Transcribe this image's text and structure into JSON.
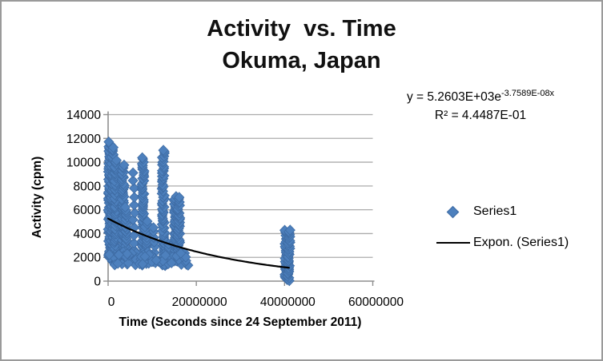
{
  "chart": {
    "title_line1": "Activity  vs. Time",
    "title_line2": "Okuma, Japan",
    "equation": {
      "prefix": "y = 5.2603E+03e",
      "exponent": "-3.7589E-08x",
      "r2": "R² = 4.4487E-01"
    },
    "x_axis": {
      "title": "Time (Seconds since 24 September 2011)",
      "ticks": [
        "0",
        "20000000",
        "40000000",
        "60000000"
      ]
    },
    "y_axis": {
      "title": "Activity (cpm)",
      "ticks": [
        "0",
        "2000",
        "4000",
        "6000",
        "8000",
        "10000",
        "12000",
        "14000"
      ]
    },
    "legend": [
      {
        "label": "Series1",
        "marker": "diamond-icon"
      },
      {
        "label": "Expon. (Series1)",
        "marker": "line-icon"
      }
    ],
    "colors": {
      "marker": "#4d80bd",
      "marker_edge": "#3e6ba3",
      "trendline": "#000000",
      "gridline": "#ababab",
      "axis": "#8f8f8f",
      "border": "#9a9a9a",
      "text": "#000000"
    }
  },
  "chart_data": {
    "type": "scatter",
    "title": "Activity vs. Time — Okuma, Japan",
    "xlabel": "Time (Seconds since 24 September 2011)",
    "ylabel": "Activity (cpm)",
    "xlim": [
      0,
      60000000
    ],
    "ylim": [
      0,
      14000
    ],
    "x_tick_values": [
      0,
      20000000,
      40000000,
      60000000
    ],
    "y_tick_values": [
      0,
      2000,
      4000,
      6000,
      8000,
      10000,
      12000,
      14000
    ],
    "grid": "horizontal",
    "legend_position": "right",
    "series": [
      {
        "name": "Series1",
        "marker": "diamond",
        "note": "Hundreds of overlapping counts-per-minute readings forming dense vertical bands; represented as column ranges (x seconds, activity cpm min/max, sampling step).",
        "clusters": [
          {
            "x": 300000,
            "ymin": 2100,
            "ymax": 11700,
            "step": 150
          },
          {
            "x": 950000,
            "ymin": 1600,
            "ymax": 11350,
            "step": 160
          },
          {
            "x": 1700000,
            "ymin": 1500,
            "ymax": 10200,
            "step": 170
          },
          {
            "x": 3400000,
            "ymin": 1500,
            "ymax": 9900,
            "step": 160
          },
          {
            "x": 4050000,
            "ymin": 1400,
            "ymax": 6300,
            "step": 200
          },
          {
            "x": 5800000,
            "ymin": 1900,
            "ymax": 9300,
            "step": 650
          },
          {
            "x": 7900000,
            "ymin": 1400,
            "ymax": 10400,
            "step": 160
          },
          {
            "x": 8600000,
            "ymin": 1500,
            "ymax": 5100,
            "step": 220
          },
          {
            "x": 10400000,
            "ymin": 1600,
            "ymax": 4900,
            "step": 420
          },
          {
            "x": 12500000,
            "ymin": 1700,
            "ymax": 11000,
            "step": 150
          },
          {
            "x": 13100000,
            "ymin": 1500,
            "ymax": 3400,
            "step": 260
          },
          {
            "x": 13900000,
            "ymin": 1500,
            "ymax": 3300,
            "step": 420
          },
          {
            "x": 15200000,
            "ymin": 1700,
            "ymax": 7100,
            "step": 150
          },
          {
            "x": 16000000,
            "ymin": 1600,
            "ymax": 7100,
            "step": 150
          },
          {
            "x": 40300000,
            "ymin": 150,
            "ymax": 4300,
            "step": 140
          },
          {
            "x": 41000000,
            "ymin": 100,
            "ymax": 4300,
            "step": 140
          }
        ],
        "band": {
          "xmin": 0,
          "xmax": 18500000,
          "ymin": 1300,
          "ymax": 2500,
          "count": 80
        }
      }
    ],
    "trendline": {
      "name": "Expon. (Series1)",
      "type": "exponential",
      "a": 5260.3,
      "b": -3.7589e-08,
      "x_start": 0,
      "x_end": 41200000,
      "equation": "y = 5.2603E+03e^(-3.7589E-08x)",
      "r_squared": "4.4487E-01"
    }
  }
}
